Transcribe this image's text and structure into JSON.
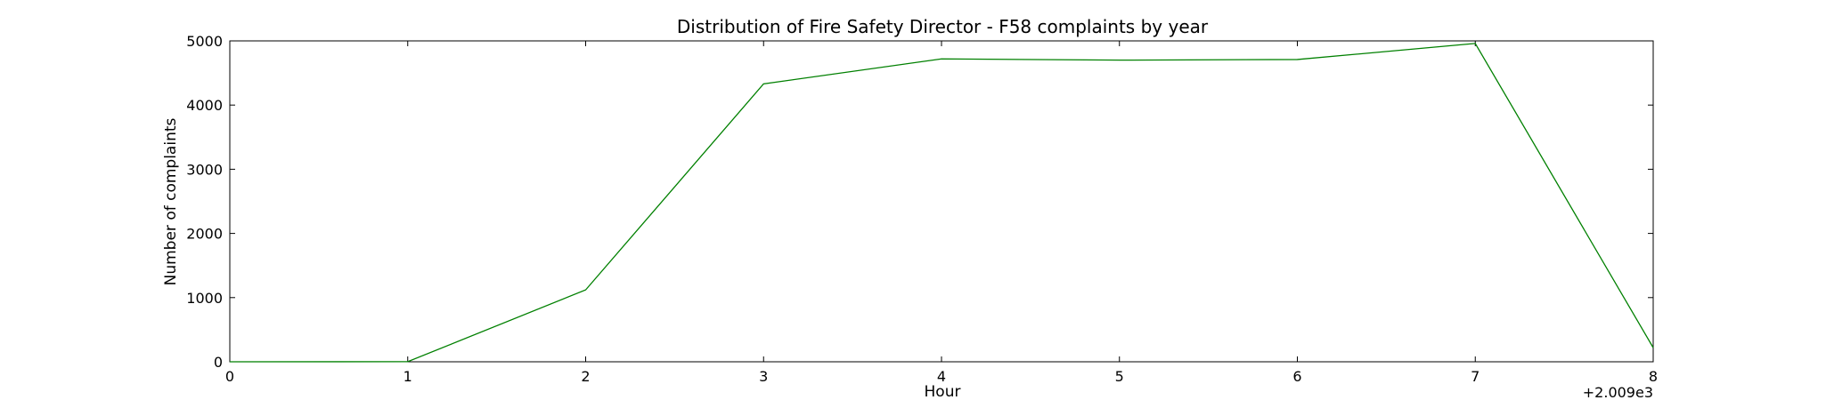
{
  "chart_data": {
    "type": "line",
    "title": "Distribution of  Fire Safety Director - F58 complaints by year",
    "xlabel": "Hour",
    "ylabel": "Number of complaints",
    "x_offset_label": "+2.009e3",
    "xlim": [
      0,
      8
    ],
    "ylim": [
      0,
      5000
    ],
    "xticks": [
      0,
      1,
      2,
      3,
      4,
      5,
      6,
      7,
      8
    ],
    "yticks": [
      0,
      1000,
      2000,
      3000,
      4000,
      5000
    ],
    "grid": false,
    "series": [
      {
        "color": "#008000",
        "x": [
          0,
          1,
          2,
          3,
          4,
          5,
          6,
          7,
          8
        ],
        "y": [
          0,
          2,
          1120,
          4330,
          4720,
          4700,
          4710,
          4960,
          220
        ]
      }
    ]
  }
}
